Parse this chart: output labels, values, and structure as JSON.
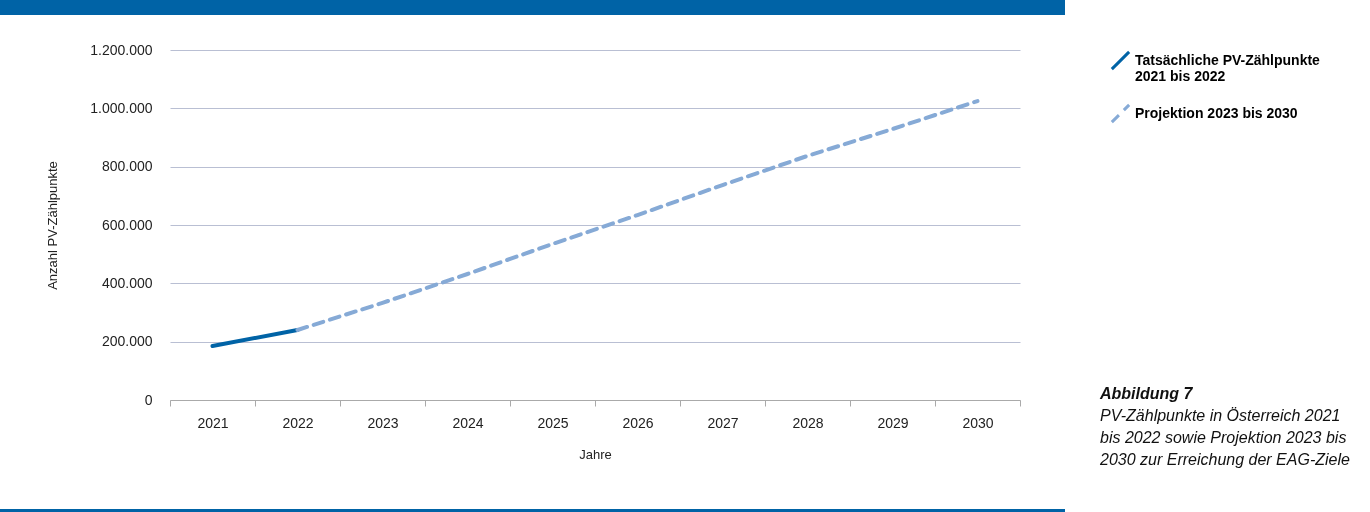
{
  "chart_data": {
    "type": "line",
    "xlabel": "Jahre",
    "ylabel": "Anzahl PV-Zählpunkte",
    "categories": [
      "2021",
      "2022",
      "2023",
      "2024",
      "2025",
      "2026",
      "2027",
      "2028",
      "2029",
      "2030"
    ],
    "series": [
      {
        "name": "Tatsächliche PV-Zählpunkte 2021 bis 2022",
        "color": "#0063a6",
        "line_style": "solid",
        "values": [
          185000,
          240000,
          null,
          null,
          null,
          null,
          null,
          null,
          null,
          null
        ]
      },
      {
        "name": "Projektion 2023 bis 2030",
        "color": "#86aad6",
        "line_style": "dashed",
        "values": [
          null,
          240000,
          333000,
          432000,
          535000,
          634000,
          737000,
          837000,
          929000,
          1025000
        ]
      }
    ],
    "ylim": [
      0,
      1200000
    ],
    "yticks": [
      0,
      {
        "value": 200000,
        "label": "200.000"
      },
      {
        "value": 400000,
        "label": "400.000"
      },
      {
        "value": 600000,
        "label": "600.000"
      },
      {
        "value": 800000,
        "label": "800.000"
      },
      {
        "value": 1000000,
        "label": "1.000.000"
      },
      {
        "value": 1200000,
        "label": "1.200.000"
      }
    ],
    "grid": "y",
    "legend": "top right",
    "marker": "none",
    "annotations": [
      "Abbildung 7",
      "PV-Zählpunkte in Österreich 2021 bis 2022 sowie Projektion 2023 bis 2030 zur Erreichung der EAG-Ziele"
    ]
  }
}
